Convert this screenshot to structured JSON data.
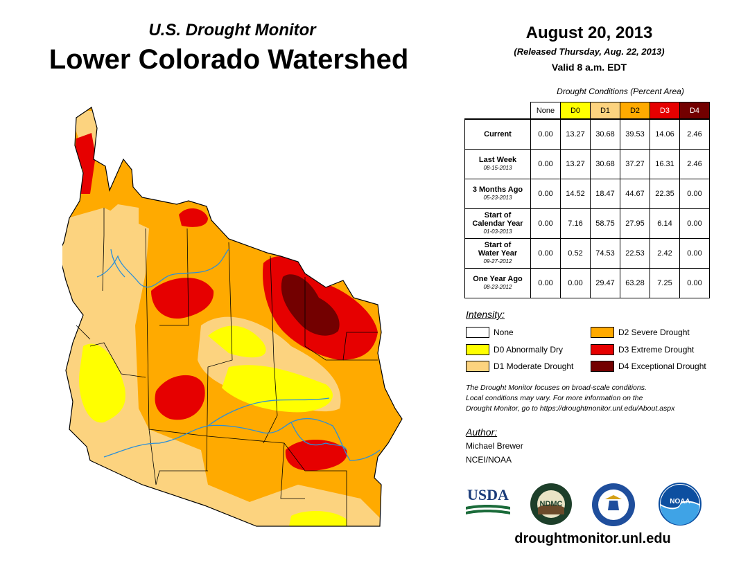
{
  "header": {
    "subtitle": "U.S. Drought Monitor",
    "title": "Lower Colorado Watershed",
    "date": "August 20, 2013",
    "released": "(Released Thursday, Aug. 22, 2013)",
    "valid": "Valid 8 a.m. EDT"
  },
  "table": {
    "caption": "Drought Conditions (Percent Area)",
    "columns": [
      "None",
      "D0",
      "D1",
      "D2",
      "D3",
      "D4"
    ],
    "rows": [
      {
        "label": "Current",
        "label2": "",
        "date": "",
        "values": [
          "0.00",
          "13.27",
          "30.68",
          "39.53",
          "14.06",
          "2.46"
        ]
      },
      {
        "label": "Last Week",
        "label2": "",
        "date": "08-15-2013",
        "values": [
          "0.00",
          "13.27",
          "30.68",
          "37.27",
          "16.31",
          "2.46"
        ]
      },
      {
        "label": "3 Months Ago",
        "label2": "",
        "date": "05-23-2013",
        "values": [
          "0.00",
          "14.52",
          "18.47",
          "44.67",
          "22.35",
          "0.00"
        ]
      },
      {
        "label": "Start of",
        "label2": "Calendar Year",
        "date": "01-03-2013",
        "values": [
          "0.00",
          "7.16",
          "58.75",
          "27.95",
          "6.14",
          "0.00"
        ]
      },
      {
        "label": "Start of",
        "label2": "Water Year",
        "date": "09-27-2012",
        "values": [
          "0.00",
          "0.52",
          "74.53",
          "22.53",
          "2.42",
          "0.00"
        ]
      },
      {
        "label": "One Year Ago",
        "label2": "",
        "date": "08-23-2012",
        "values": [
          "0.00",
          "0.00",
          "29.47",
          "63.28",
          "7.25",
          "0.00"
        ]
      }
    ]
  },
  "legend": {
    "heading": "Intensity:",
    "items": [
      {
        "label": "None",
        "color": "#ffffff"
      },
      {
        "label": "D0 Abnormally Dry",
        "color": "#ffff00"
      },
      {
        "label": "D1 Moderate Drought",
        "color": "#fcd37f"
      },
      {
        "label": "D2 Severe Drought",
        "color": "#ffaa00"
      },
      {
        "label": "D3 Extreme Drought",
        "color": "#e60000"
      },
      {
        "label": "D4 Exceptional Drought",
        "color": "#730000"
      }
    ]
  },
  "note": {
    "line1": "The Drought Monitor focuses on broad-scale conditions.",
    "line2": "Local conditions may vary. For more information on the",
    "line3": "Drought Monitor, go to https://droughtmonitor.unl.edu/About.aspx"
  },
  "author": {
    "heading": "Author:",
    "name": "Michael Brewer",
    "org": "NCEI/NOAA"
  },
  "logos": {
    "usda": "USDA",
    "ndmc": "NDMC",
    "noaa": "NOAA"
  },
  "website": "droughtmonitor.unl.edu",
  "colors": {
    "river": "#2b8fd9",
    "border": "#000000"
  }
}
